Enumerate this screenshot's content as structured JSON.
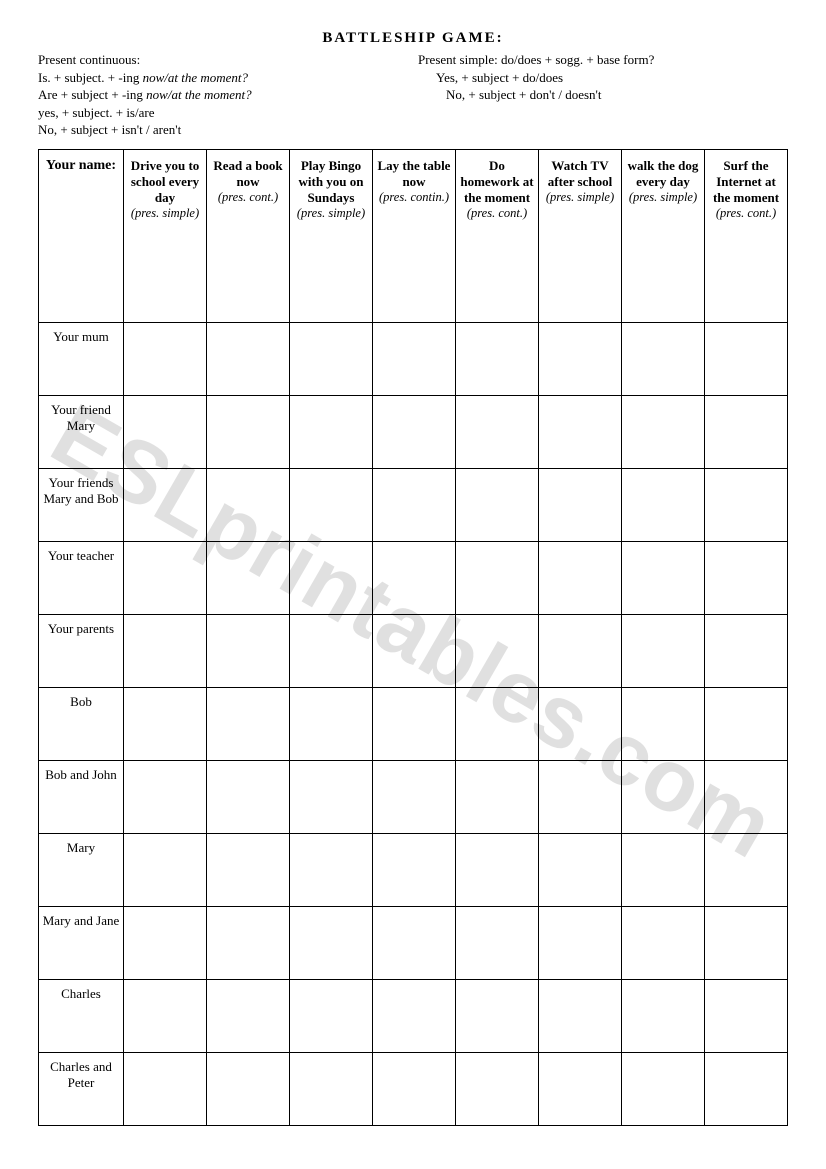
{
  "title": "BATTLESHIP GAME:",
  "instructions": {
    "left": {
      "heading": "Present continuous:",
      "line1_a": "Is. + subject. + -ing ",
      "line1_b": "now/at the moment?",
      "line2_a": "Are + subject + -ing ",
      "line2_b": "now/at the moment?",
      "line3": "yes, + subject. + is/are",
      "line4": "No, + subject + isn't / aren't"
    },
    "right": {
      "heading": "Present simple: do/does + sogg. + base form?",
      "line1": "Yes, + subject + do/does",
      "line2": "No, + subject + don't / doesn't"
    }
  },
  "table": {
    "corner": "Your name:",
    "columns": [
      {
        "main": "Drive you to school every day",
        "note": "(pres. simple)"
      },
      {
        "main": "Read a book now",
        "note": "(pres. cont.)"
      },
      {
        "main": "Play Bingo with you on Sundays",
        "note": "(pres. simple)"
      },
      {
        "main": "Lay the table now",
        "note": "(pres. contin.)"
      },
      {
        "main": "Do homework at the moment",
        "note": "(pres. cont.)"
      },
      {
        "main": "Watch TV after school",
        "note": "(pres. simple)"
      },
      {
        "main": "walk the dog every day",
        "note": "(pres. simple)"
      },
      {
        "main": "Surf the Internet at the moment",
        "note": "(pres. cont.)"
      }
    ],
    "rows": [
      "Your mum",
      "Your friend Mary",
      "Your friends Mary and Bob",
      "Your teacher",
      "Your parents",
      "Bob",
      "Bob and John",
      "Mary",
      "Mary and Jane",
      "Charles",
      "Charles and Peter"
    ]
  },
  "watermark": "ESLprintables.com"
}
